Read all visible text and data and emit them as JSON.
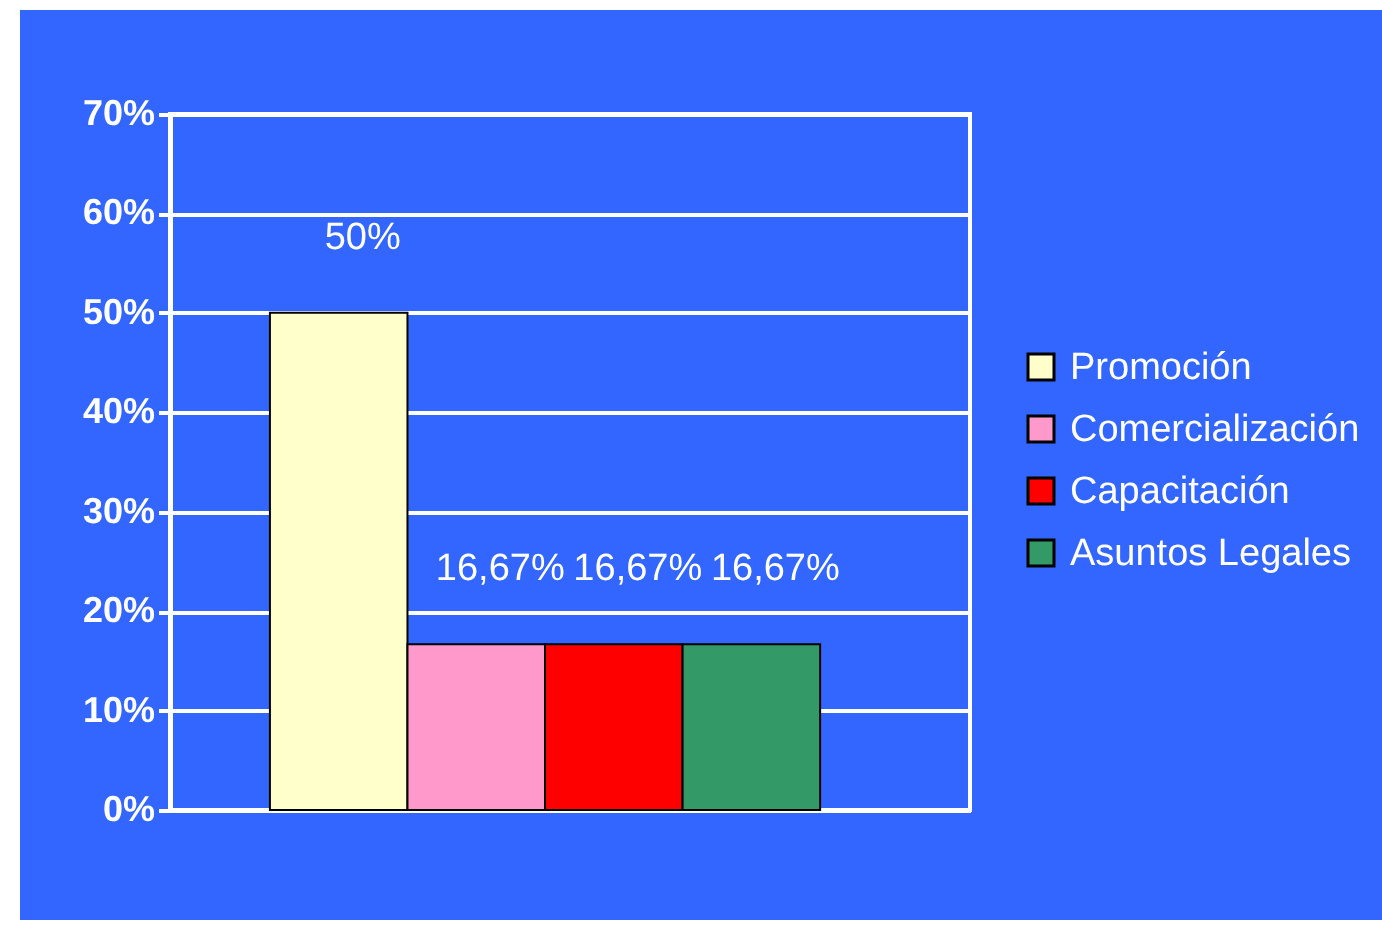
{
  "chart_data": {
    "type": "bar",
    "categories": [
      null
    ],
    "series": [
      {
        "name": "Promoción",
        "color": "#ffffcc",
        "values": [
          50
        ],
        "value_labels": [
          "50%"
        ]
      },
      {
        "name": "Comercialización",
        "color": "#ff99cc",
        "values": [
          16.67
        ],
        "value_labels": [
          "16,67%"
        ]
      },
      {
        "name": "Capacitación",
        "color": "#ff0000",
        "values": [
          16.67
        ],
        "value_labels": [
          "16,67%"
        ]
      },
      {
        "name": "Asuntos Legales",
        "color": "#339966",
        "values": [
          16.67
        ],
        "value_labels": [
          "16,67%"
        ]
      }
    ],
    "ylim": [
      0,
      70
    ],
    "yticks": [
      {
        "value": 0,
        "label": "0%"
      },
      {
        "value": 10,
        "label": "10%"
      },
      {
        "value": 20,
        "label": "20%"
      },
      {
        "value": 30,
        "label": "30%"
      },
      {
        "value": 40,
        "label": "40%"
      },
      {
        "value": 50,
        "label": "50%"
      },
      {
        "value": 60,
        "label": "60%"
      },
      {
        "value": 70,
        "label": "70%"
      }
    ],
    "grid": "y",
    "legend": "right",
    "tick_labels": "y"
  }
}
